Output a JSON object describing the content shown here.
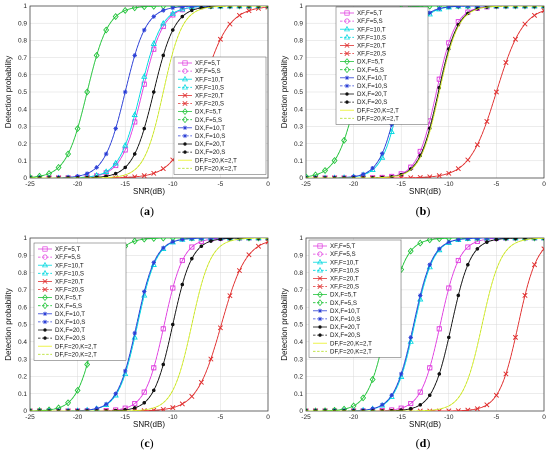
{
  "chart_data": [
    {
      "type": "line",
      "panel_label": "(a)",
      "xlabel": "SNR(dB)",
      "ylabel": "Detection probability",
      "xlim": [
        -25,
        0
      ],
      "ylim": [
        0,
        1
      ],
      "xticks": [
        "-25",
        "-20",
        "-15",
        "-10",
        "-5",
        "0"
      ],
      "yticks": [
        "0",
        "0.1",
        "0.2",
        "0.3",
        "0.4",
        "0.5",
        "0.6",
        "0.7",
        "0.8",
        "0.9",
        "1"
      ],
      "grid": true,
      "legend_position": "inside-right",
      "series": [
        {
          "name": "XF,F=5,T",
          "color": "#e040e0",
          "dash": false,
          "marker": "square",
          "center": -13.2,
          "width": 1.1
        },
        {
          "name": "XF,F=5,S",
          "color": "#e040e0",
          "dash": true,
          "marker": "circle",
          "center": -13.2,
          "width": 1.1
        },
        {
          "name": "XF,F=10,T",
          "color": "#00d8e0",
          "dash": false,
          "marker": "triangle",
          "center": -13.4,
          "width": 1.1
        },
        {
          "name": "XF,F=10,S",
          "color": "#00d8e0",
          "dash": true,
          "marker": "triangle",
          "center": -13.4,
          "width": 1.1
        },
        {
          "name": "XF,F=20,T",
          "color": "#e03030",
          "dash": false,
          "marker": "x",
          "center": -7.0,
          "width": 1.4
        },
        {
          "name": "XF,F=20,S",
          "color": "#e03030",
          "dash": true,
          "marker": "x",
          "center": -7.0,
          "width": 1.4
        },
        {
          "name": "DX,F=5,T",
          "color": "#22c33a",
          "dash": false,
          "marker": "diamond",
          "center": -19.0,
          "width": 1.1
        },
        {
          "name": "DX,F=5,S",
          "color": "#22c33a",
          "dash": true,
          "marker": "diamond",
          "center": -19.0,
          "width": 1.1
        },
        {
          "name": "DX,F=10,T",
          "color": "#2b3fd6",
          "dash": false,
          "marker": "star",
          "center": -15.0,
          "width": 1.1
        },
        {
          "name": "DX,F=10,S",
          "color": "#2b3fd6",
          "dash": true,
          "marker": "star",
          "center": -15.0,
          "width": 1.1
        },
        {
          "name": "DX,F=20,T",
          "color": "#111111",
          "dash": false,
          "marker": "dot",
          "center": -12.0,
          "width": 1.1
        },
        {
          "name": "DX,F=20,S",
          "color": "#111111",
          "dash": true,
          "marker": "dot",
          "center": -12.0,
          "width": 1.1
        },
        {
          "name": "DF,F=20,K=2,T",
          "color": "#e8f020",
          "dash": false,
          "marker": "none",
          "center": -11.0,
          "width": 1.0
        },
        {
          "name": "DF,F=20,K=2,T",
          "color": "#b8e030",
          "dash": true,
          "marker": "none",
          "center": -11.0,
          "width": 1.0
        }
      ]
    },
    {
      "type": "line",
      "panel_label": "(b)",
      "xlabel": "SNR(dB)",
      "ylabel": "Detection probability",
      "xlim": [
        -25,
        0
      ],
      "ylim": [
        0,
        1
      ],
      "xticks": [
        "-25",
        "-20",
        "-15",
        "-10",
        "-5",
        "0"
      ],
      "yticks": [
        "0",
        "0.1",
        "0.2",
        "0.3",
        "0.4",
        "0.5",
        "0.6",
        "0.7",
        "0.8",
        "0.9",
        "1"
      ],
      "grid": true,
      "legend_position": "inside-right",
      "series": [
        {
          "name": "XF,F=5,T",
          "color": "#e040e0",
          "dash": false,
          "marker": "square",
          "center": -11.3,
          "width": 1.0
        },
        {
          "name": "XF,F=5,S",
          "color": "#e040e0",
          "dash": true,
          "marker": "circle",
          "center": -11.3,
          "width": 1.0
        },
        {
          "name": "XF,F=10,T",
          "color": "#00d8e0",
          "dash": false,
          "marker": "triangle",
          "center": -15.0,
          "width": 1.0
        },
        {
          "name": "XF,F=10,S",
          "color": "#00d8e0",
          "dash": true,
          "marker": "triangle",
          "center": -15.0,
          "width": 1.0
        },
        {
          "name": "XF,F=20,T",
          "color": "#e03030",
          "dash": false,
          "marker": "x",
          "center": -5.0,
          "width": 1.4
        },
        {
          "name": "XF,F=20,S",
          "color": "#e03030",
          "dash": true,
          "marker": "x",
          "center": -5.0,
          "width": 1.4
        },
        {
          "name": "DX,F=5,T",
          "color": "#22c33a",
          "dash": false,
          "marker": "diamond",
          "center": -19.6,
          "width": 1.1
        },
        {
          "name": "DX,F=5,S",
          "color": "#22c33a",
          "dash": true,
          "marker": "diamond",
          "center": -19.6,
          "width": 1.1
        },
        {
          "name": "DX,F=10,T",
          "color": "#2b3fd6",
          "dash": false,
          "marker": "star",
          "center": -15.2,
          "width": 1.0
        },
        {
          "name": "DX,F=10,S",
          "color": "#2b3fd6",
          "dash": true,
          "marker": "star",
          "center": -15.2,
          "width": 1.0
        },
        {
          "name": "DX,F=20,T",
          "color": "#111111",
          "dash": false,
          "marker": "dot",
          "center": -11.1,
          "width": 1.0
        },
        {
          "name": "DX,F=20,S",
          "color": "#111111",
          "dash": true,
          "marker": "dot",
          "center": -11.1,
          "width": 1.0
        },
        {
          "name": "DF,F=20,K=2,T",
          "color": "#e8f020",
          "dash": false,
          "marker": "none",
          "center": -11.0,
          "width": 1.0
        },
        {
          "name": "DF,F=20,K=2,T",
          "color": "#b8e030",
          "dash": true,
          "marker": "none",
          "center": -11.0,
          "width": 1.0
        }
      ]
    },
    {
      "type": "line",
      "panel_label": "(c)",
      "xlabel": "SNR(dB)",
      "ylabel": "Detection probability",
      "xlim": [
        -25,
        0
      ],
      "ylim": [
        0,
        1
      ],
      "xticks": [
        "-25",
        "-20",
        "-15",
        "-10",
        "-5",
        "0"
      ],
      "yticks": [
        "0",
        "0.1",
        "0.2",
        "0.3",
        "0.4",
        "0.5",
        "0.6",
        "0.7",
        "0.8",
        "0.9",
        "1"
      ],
      "grid": true,
      "legend_position": "inside-left",
      "series": [
        {
          "name": "XF,F=5,T",
          "color": "#e040e0",
          "dash": false,
          "marker": "square",
          "center": -10.9,
          "width": 1.0
        },
        {
          "name": "XF,F=5,S",
          "color": "#e040e0",
          "dash": true,
          "marker": "circle",
          "center": -10.9,
          "width": 1.0
        },
        {
          "name": "XF,F=10,T",
          "color": "#00d8e0",
          "dash": false,
          "marker": "triangle",
          "center": -13.7,
          "width": 1.0
        },
        {
          "name": "XF,F=10,S",
          "color": "#00d8e0",
          "dash": true,
          "marker": "triangle",
          "center": -13.7,
          "width": 1.0
        },
        {
          "name": "XF,F=20,T",
          "color": "#e03030",
          "dash": false,
          "marker": "x",
          "center": -4.9,
          "width": 1.3
        },
        {
          "name": "XF,F=20,S",
          "color": "#e03030",
          "dash": true,
          "marker": "x",
          "center": -4.9,
          "width": 1.3
        },
        {
          "name": "DX,F=5,T",
          "color": "#22c33a",
          "dash": false,
          "marker": "diamond",
          "center": -18.0,
          "width": 1.0
        },
        {
          "name": "DX,F=5,S",
          "color": "#22c33a",
          "dash": true,
          "marker": "diamond",
          "center": -18.0,
          "width": 1.0
        },
        {
          "name": "DX,F=10,T",
          "color": "#2b3fd6",
          "dash": false,
          "marker": "star",
          "center": -13.8,
          "width": 1.0
        },
        {
          "name": "DX,F=10,S",
          "color": "#2b3fd6",
          "dash": true,
          "marker": "star",
          "center": -13.8,
          "width": 1.0
        },
        {
          "name": "DX,F=20,T",
          "color": "#111111",
          "dash": false,
          "marker": "dot",
          "center": -10.0,
          "width": 1.0
        },
        {
          "name": "DX,F=20,S",
          "color": "#111111",
          "dash": true,
          "marker": "dot",
          "center": -10.0,
          "width": 1.0
        },
        {
          "name": "DF,F=20,K=2,T",
          "color": "#e8f020",
          "dash": false,
          "marker": "none",
          "center": -8.0,
          "width": 1.0
        },
        {
          "name": "DF,F=20,K=2,T",
          "color": "#b8e030",
          "dash": true,
          "marker": "none",
          "center": -8.0,
          "width": 1.0
        }
      ]
    },
    {
      "type": "line",
      "panel_label": "(d)",
      "xlabel": "SNR(dB)",
      "ylabel": "Detection probability",
      "xlim": [
        -25,
        0
      ],
      "ylim": [
        0,
        1
      ],
      "xticks": [
        "-25",
        "-20",
        "-15",
        "-10",
        "-5",
        "0"
      ],
      "yticks": [
        "0",
        "0.1",
        "0.2",
        "0.3",
        "0.4",
        "0.5",
        "0.6",
        "0.7",
        "0.8",
        "0.9",
        "1"
      ],
      "grid": true,
      "legend_position": "inside-left",
      "series": [
        {
          "name": "XF,F=5,T",
          "color": "#e040e0",
          "dash": false,
          "marker": "square",
          "center": -10.9,
          "width": 1.0
        },
        {
          "name": "XF,F=5,S",
          "color": "#e040e0",
          "dash": true,
          "marker": "circle",
          "center": -10.9,
          "width": 1.0
        },
        {
          "name": "XF,F=10,T",
          "color": "#00d8e0",
          "dash": false,
          "marker": "triangle",
          "center": -13.6,
          "width": 1.0
        },
        {
          "name": "XF,F=10,S",
          "color": "#00d8e0",
          "dash": true,
          "marker": "triangle",
          "center": -13.6,
          "width": 1.0
        },
        {
          "name": "XF,F=20,T",
          "color": "#e03030",
          "dash": false,
          "marker": "x",
          "center": -2.7,
          "width": 1.0
        },
        {
          "name": "XF,F=20,S",
          "color": "#e03030",
          "dash": true,
          "marker": "x",
          "center": -2.7,
          "width": 1.0
        },
        {
          "name": "DX,F=5,T",
          "color": "#22c33a",
          "dash": false,
          "marker": "diamond",
          "center": -16.5,
          "width": 1.0
        },
        {
          "name": "DX,F=5,S",
          "color": "#22c33a",
          "dash": true,
          "marker": "diamond",
          "center": -16.5,
          "width": 1.0
        },
        {
          "name": "DX,F=10,T",
          "color": "#2b3fd6",
          "dash": false,
          "marker": "star",
          "center": -13.7,
          "width": 1.0
        },
        {
          "name": "DX,F=10,S",
          "color": "#2b3fd6",
          "dash": true,
          "marker": "star",
          "center": -13.7,
          "width": 1.0
        },
        {
          "name": "DX,F=20,T",
          "color": "#111111",
          "dash": false,
          "marker": "dot",
          "center": -9.7,
          "width": 1.0
        },
        {
          "name": "DX,F=20,S",
          "color": "#111111",
          "dash": true,
          "marker": "dot",
          "center": -9.7,
          "width": 1.0
        },
        {
          "name": "DF,F=20,K=2,T",
          "color": "#e8f020",
          "dash": false,
          "marker": "none",
          "center": -6.5,
          "width": 1.0
        },
        {
          "name": "DF,F=20,K=2,T",
          "color": "#b8e030",
          "dash": true,
          "marker": "none",
          "center": -6.5,
          "width": 1.0
        }
      ]
    }
  ]
}
